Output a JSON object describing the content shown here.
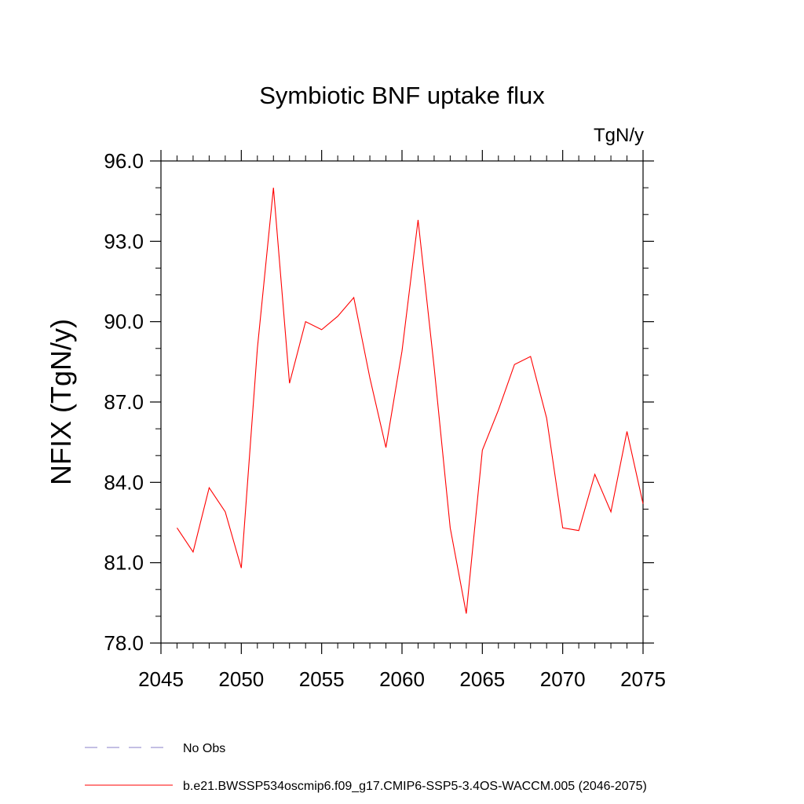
{
  "chart_data": {
    "type": "line",
    "title": "Symbiotic BNF uptake flux",
    "units_label": "TgN/y",
    "ylabel": "NFIX  (TgN/y)",
    "xlabel": "",
    "xlim": [
      2045,
      2075
    ],
    "ylim": [
      78.0,
      96.0
    ],
    "x_ticks": [
      2045,
      2050,
      2055,
      2060,
      2065,
      2070,
      2075
    ],
    "x_tick_labels": [
      "2045",
      "2050",
      "2055",
      "2060",
      "2065",
      "2070",
      "2075"
    ],
    "y_ticks": [
      78.0,
      81.0,
      84.0,
      87.0,
      90.0,
      93.0,
      96.0
    ],
    "y_tick_labels": [
      "78.0",
      "81.0",
      "84.0",
      "87.0",
      "90.0",
      "93.0",
      "96.0"
    ],
    "grid": false,
    "series": [
      {
        "name": "b.e21.BWSSP534oscmip6.f09_g17.CMIP6-SSP5-3.4OS-WACCM.005 (2046-2075)",
        "color": "#ff0000",
        "x": [
          2046,
          2047,
          2048,
          2049,
          2050,
          2051,
          2052,
          2053,
          2054,
          2055,
          2056,
          2057,
          2058,
          2059,
          2060,
          2061,
          2062,
          2063,
          2064,
          2065,
          2066,
          2067,
          2068,
          2069,
          2070,
          2071,
          2072,
          2073,
          2074,
          2075
        ],
        "y": [
          82.3,
          81.4,
          83.8,
          82.9,
          80.8,
          89.0,
          95.0,
          87.7,
          90.0,
          89.7,
          90.2,
          90.9,
          87.9,
          85.3,
          88.9,
          93.8,
          88.3,
          82.3,
          79.1,
          85.2,
          86.7,
          88.4,
          88.7,
          86.4,
          82.3,
          82.2,
          84.3,
          82.9,
          85.9,
          83.2
        ]
      }
    ],
    "legend": [
      {
        "label": "No Obs",
        "style": "dashed",
        "color": "#8a7fc9"
      },
      {
        "label": "b.e21.BWSSP534oscmip6.f09_g17.CMIP6-SSP5-3.4OS-WACCM.005 (2046-2075)",
        "style": "solid",
        "color": "#ff0000"
      }
    ],
    "legend_position": "bottom"
  }
}
